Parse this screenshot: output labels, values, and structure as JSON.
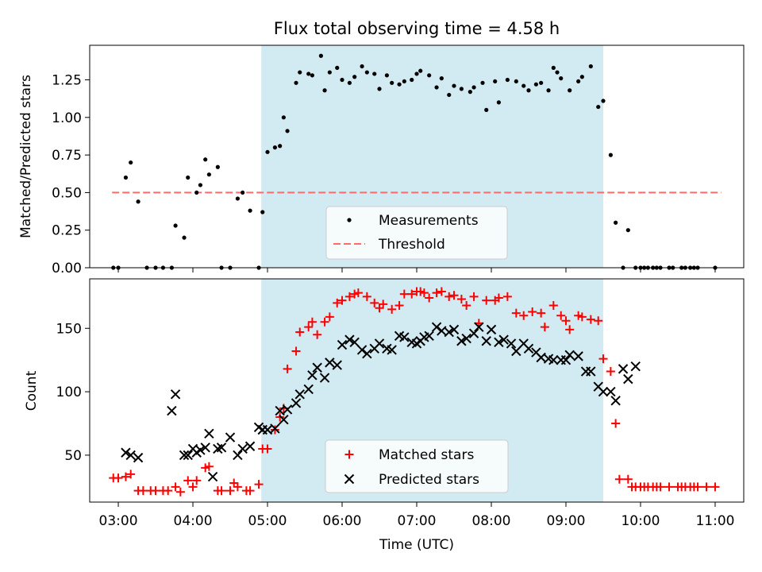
{
  "figure_title": "Flux total observing time = 4.58 h",
  "colors": {
    "span": "#add8e6",
    "measurements": "#000000",
    "threshold": "#ff6b6b",
    "matched": "#ff0000",
    "predicted": "#000000"
  },
  "chart_data": [
    {
      "type": "scatter",
      "name": "ratio",
      "title": "Flux total observing time = 4.58 h",
      "xlabel": "",
      "ylabel": "Matched/Predicted stars",
      "xlim": [
        "02:37",
        "11:23"
      ],
      "ylim": [
        0,
        1.48
      ],
      "yticks": [
        0.0,
        0.25,
        0.5,
        0.75,
        1.0,
        1.25
      ],
      "ytick_labels": [
        "0.00",
        "0.25",
        "0.50",
        "0.75",
        "1.00",
        "1.25"
      ],
      "shaded_span": [
        "04:55",
        "09:30"
      ],
      "legend": {
        "position": "lower-center",
        "entries": [
          {
            "label": "Measurements"
          },
          {
            "label": "Threshold"
          }
        ]
      },
      "threshold": {
        "value": 0.5,
        "x": [
          "02:55",
          "11:05"
        ]
      },
      "series": [
        {
          "name": "Measurements",
          "marker": "dot",
          "x": [
            "02:56",
            "03:00",
            "03:06",
            "03:10",
            "03:16",
            "03:23",
            "03:30",
            "03:36",
            "03:43",
            "03:46",
            "03:53",
            "03:56",
            "04:03",
            "04:06",
            "04:10",
            "04:13",
            "04:20",
            "04:23",
            "04:30",
            "04:36",
            "04:40",
            "04:46",
            "04:53",
            "04:56",
            "05:00",
            "05:06",
            "05:10",
            "05:13",
            "05:16",
            "05:23",
            "05:26",
            "05:33",
            "05:36",
            "05:43",
            "05:46",
            "05:50",
            "05:56",
            "06:00",
            "06:06",
            "06:10",
            "06:16",
            "06:20",
            "06:26",
            "06:30",
            "06:36",
            "06:40",
            "06:46",
            "06:50",
            "06:56",
            "07:00",
            "07:03",
            "07:10",
            "07:16",
            "07:20",
            "07:26",
            "07:30",
            "07:36",
            "07:43",
            "07:46",
            "07:53",
            "07:56",
            "08:03",
            "08:06",
            "08:13",
            "08:20",
            "08:26",
            "08:30",
            "08:36",
            "08:40",
            "08:46",
            "08:50",
            "08:53",
            "08:56",
            "09:03",
            "09:10",
            "09:13",
            "09:20",
            "09:26",
            "09:30",
            "09:36",
            "09:40",
            "09:46",
            "09:50",
            "09:56",
            "10:00",
            "10:03",
            "10:06",
            "10:10",
            "10:13",
            "10:16",
            "10:23",
            "10:26",
            "10:33",
            "10:36",
            "10:40",
            "10:43",
            "10:46",
            "11:00"
          ],
          "y": [
            0,
            0,
            0.6,
            0.7,
            0.44,
            0,
            0,
            0,
            0,
            0.28,
            0.2,
            0.6,
            0.5,
            0.55,
            0.72,
            0.62,
            0.67,
            0,
            0,
            0.46,
            0.5,
            0.38,
            0,
            0.37,
            0.77,
            0.8,
            0.81,
            1.0,
            0.91,
            1.23,
            1.3,
            1.29,
            1.28,
            1.41,
            1.18,
            1.3,
            1.33,
            1.25,
            1.23,
            1.27,
            1.34,
            1.3,
            1.29,
            1.19,
            1.28,
            1.23,
            1.22,
            1.24,
            1.25,
            1.29,
            1.31,
            1.28,
            1.2,
            1.26,
            1.15,
            1.21,
            1.19,
            1.17,
            1.2,
            1.23,
            1.05,
            1.24,
            1.1,
            1.25,
            1.24,
            1.21,
            1.18,
            1.22,
            1.23,
            1.18,
            1.33,
            1.3,
            1.26,
            1.18,
            1.24,
            1.27,
            1.34,
            1.07,
            1.11,
            0.75,
            0.3,
            0,
            0.25,
            0,
            0,
            0,
            0,
            0,
            0,
            0,
            0,
            0,
            0,
            0,
            0,
            0,
            0,
            0
          ]
        }
      ]
    },
    {
      "type": "scatter",
      "name": "counts",
      "title": "",
      "xlabel": "Time (UTC)",
      "ylabel": "Count",
      "xlim": [
        "02:37",
        "11:23"
      ],
      "ylim": [
        13,
        189
      ],
      "xticks": [
        "03:00",
        "04:00",
        "05:00",
        "06:00",
        "07:00",
        "08:00",
        "09:00",
        "10:00",
        "11:00"
      ],
      "yticks": [
        50,
        100,
        150
      ],
      "shaded_span": [
        "04:55",
        "09:30"
      ],
      "legend": {
        "position": "lower-center",
        "entries": [
          {
            "label": "Matched stars"
          },
          {
            "label": "Predicted stars"
          }
        ]
      },
      "series": [
        {
          "name": "Matched stars",
          "marker": "plus",
          "x": [
            "02:56",
            "03:00",
            "03:06",
            "03:10",
            "03:16",
            "03:20",
            "03:26",
            "03:30",
            "03:36",
            "03:40",
            "03:46",
            "03:50",
            "03:56",
            "04:00",
            "04:03",
            "04:10",
            "04:13",
            "04:20",
            "04:23",
            "04:30",
            "04:33",
            "04:36",
            "04:43",
            "04:46",
            "04:53",
            "04:56",
            "05:00",
            "05:06",
            "05:10",
            "05:13",
            "05:16",
            "05:23",
            "05:26",
            "05:33",
            "05:36",
            "05:40",
            "05:46",
            "05:50",
            "05:56",
            "06:00",
            "06:06",
            "06:10",
            "06:13",
            "06:20",
            "06:26",
            "06:30",
            "06:33",
            "06:40",
            "06:46",
            "06:50",
            "06:56",
            "07:00",
            "07:03",
            "07:06",
            "07:10",
            "07:16",
            "07:20",
            "07:26",
            "07:30",
            "07:36",
            "07:40",
            "07:46",
            "07:50",
            "07:56",
            "08:03",
            "08:06",
            "08:13",
            "08:20",
            "08:26",
            "08:33",
            "08:40",
            "08:43",
            "08:50",
            "08:56",
            "09:00",
            "09:03",
            "09:10",
            "09:13",
            "09:20",
            "09:26",
            "09:30",
            "09:36",
            "09:40",
            "09:43",
            "09:50",
            "09:53",
            "09:56",
            "10:00",
            "10:03",
            "10:06",
            "10:10",
            "10:13",
            "10:16",
            "10:23",
            "10:30",
            "10:33",
            "10:36",
            "10:40",
            "10:43",
            "10:46",
            "10:53",
            "11:00"
          ],
          "y": [
            32,
            32,
            33,
            35,
            22,
            22,
            22,
            22,
            22,
            22,
            25,
            21,
            30,
            25,
            30,
            40,
            41,
            22,
            22,
            22,
            28,
            25,
            22,
            22,
            27,
            55,
            55,
            70,
            80,
            87,
            118,
            132,
            147,
            151,
            155,
            145,
            155,
            159,
            170,
            172,
            175,
            177,
            178,
            175,
            170,
            166,
            169,
            165,
            168,
            177,
            177,
            179,
            179,
            178,
            174,
            178,
            179,
            175,
            176,
            173,
            168,
            175,
            154,
            172,
            172,
            174,
            175,
            162,
            160,
            163,
            162,
            151,
            168,
            160,
            156,
            149,
            160,
            159,
            157,
            156,
            126,
            116,
            75,
            31,
            31,
            25,
            25,
            25,
            25,
            25,
            25,
            25,
            25,
            25,
            25,
            25,
            25,
            25,
            25,
            25,
            25,
            25
          ]
        },
        {
          "name": "Predicted stars",
          "marker": "x",
          "x": [
            "03:06",
            "03:10",
            "03:16",
            "03:43",
            "03:46",
            "03:53",
            "03:56",
            "04:00",
            "04:03",
            "04:06",
            "04:10",
            "04:13",
            "04:16",
            "04:20",
            "04:23",
            "04:30",
            "04:36",
            "04:40",
            "04:46",
            "04:53",
            "04:56",
            "05:00",
            "05:06",
            "05:10",
            "05:13",
            "05:16",
            "05:23",
            "05:26",
            "05:33",
            "05:36",
            "05:40",
            "05:46",
            "05:50",
            "05:56",
            "06:00",
            "06:06",
            "06:10",
            "06:16",
            "06:20",
            "06:26",
            "06:30",
            "06:36",
            "06:40",
            "06:46",
            "06:50",
            "06:56",
            "07:00",
            "07:03",
            "07:06",
            "07:10",
            "07:16",
            "07:20",
            "07:26",
            "07:30",
            "07:36",
            "07:40",
            "07:46",
            "07:50",
            "07:56",
            "08:00",
            "08:06",
            "08:10",
            "08:16",
            "08:20",
            "08:26",
            "08:30",
            "08:36",
            "08:40",
            "08:46",
            "08:50",
            "08:56",
            "09:00",
            "09:03",
            "09:10",
            "09:16",
            "09:20",
            "09:26",
            "09:30",
            "09:36",
            "09:40",
            "09:46",
            "09:50",
            "09:56"
          ],
          "y": [
            52,
            50,
            48,
            85,
            98,
            50,
            50,
            55,
            52,
            54,
            56,
            67,
            33,
            55,
            56,
            64,
            50,
            55,
            57,
            72,
            70,
            70,
            71,
            85,
            78,
            86,
            91,
            98,
            102,
            113,
            119,
            111,
            123,
            121,
            137,
            141,
            139,
            133,
            130,
            134,
            138,
            134,
            133,
            144,
            143,
            139,
            138,
            140,
            143,
            144,
            151,
            148,
            147,
            149,
            140,
            142,
            146,
            151,
            140,
            149,
            139,
            141,
            138,
            132,
            138,
            134,
            131,
            127,
            126,
            125,
            125,
            125,
            129,
            128,
            116,
            116,
            104,
            100,
            100,
            93,
            118,
            110,
            120
          ]
        }
      ]
    }
  ]
}
